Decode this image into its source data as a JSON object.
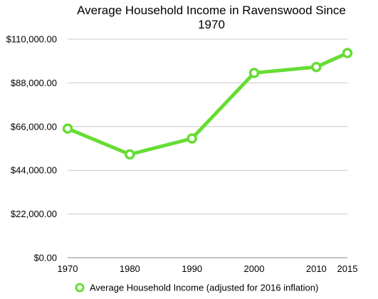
{
  "chart_data": {
    "type": "line",
    "title_lines": [
      "Average Household Income in Ravenswood Since",
      "1970"
    ],
    "categories": [
      "1970",
      "1980",
      "1990",
      "2000",
      "2010",
      "2015"
    ],
    "series": [
      {
        "name": "Average Household Income (adjusted for 2016 inflation)",
        "values": [
          65000,
          52000,
          60000,
          93000,
          96000,
          103000
        ],
        "color": "#66dd33"
      }
    ],
    "y_ticks": [
      "$0.00",
      "$22,000.00",
      "$44,000.00",
      "$66,000.00",
      "$88,000.00",
      "$110,000.00"
    ],
    "y_tick_values": [
      0,
      22000,
      44000,
      66000,
      88000,
      110000
    ],
    "ylim": [
      0,
      110000
    ],
    "grid": true,
    "legend_position": "bottom-center",
    "gridline_color": "#c8c8c8"
  }
}
